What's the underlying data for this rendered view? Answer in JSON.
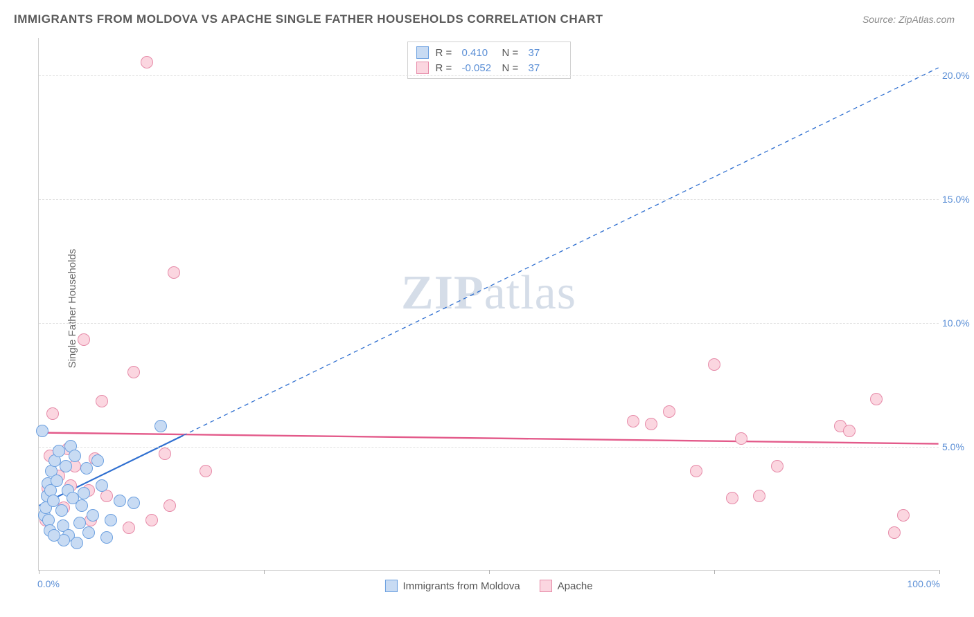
{
  "title": "IMMIGRANTS FROM MOLDOVA VS APACHE SINGLE FATHER HOUSEHOLDS CORRELATION CHART",
  "source": "Source: ZipAtlas.com",
  "ylabel": "Single Father Households",
  "watermark_a": "ZIP",
  "watermark_b": "atlas",
  "chart": {
    "type": "scatter",
    "xlim": [
      0,
      100
    ],
    "ylim": [
      0,
      21.5
    ],
    "xtick_positions": [
      0,
      25,
      50,
      75,
      100
    ],
    "x_axis_labels": {
      "min": "0.0%",
      "max": "100.0%"
    },
    "ytick_positions": [
      5,
      10,
      15,
      20
    ],
    "ytick_labels": [
      "5.0%",
      "10.0%",
      "15.0%",
      "20.0%"
    ],
    "background_color": "#ffffff",
    "grid_color": "#e0e0e0",
    "marker_radius": 9,
    "axis_label_color": "#5b8fd6",
    "series": [
      {
        "key": "moldova",
        "name": "Immigrants from Moldova",
        "fill_color": "#c8dbf3",
        "stroke_color": "#6ca0e0",
        "R": "0.410",
        "N": "37",
        "trend": {
          "x1": 0,
          "y1": 2.6,
          "x2": 100,
          "y2": 20.3,
          "solid_until_x": 16,
          "color": "#2f6fd0",
          "width": 2.2,
          "dash": "6,5"
        },
        "points": [
          [
            0.4,
            5.6
          ],
          [
            0.6,
            2.2
          ],
          [
            0.8,
            2.5
          ],
          [
            0.9,
            3.0
          ],
          [
            1.0,
            3.5
          ],
          [
            1.1,
            2.0
          ],
          [
            1.2,
            1.6
          ],
          [
            1.3,
            3.2
          ],
          [
            1.4,
            4.0
          ],
          [
            1.6,
            2.8
          ],
          [
            1.8,
            4.4
          ],
          [
            2.0,
            3.6
          ],
          [
            2.2,
            4.8
          ],
          [
            2.5,
            2.4
          ],
          [
            2.7,
            1.8
          ],
          [
            3.0,
            4.2
          ],
          [
            3.2,
            3.2
          ],
          [
            3.3,
            1.4
          ],
          [
            3.5,
            5.0
          ],
          [
            3.8,
            2.9
          ],
          [
            4.0,
            4.6
          ],
          [
            4.5,
            1.9
          ],
          [
            4.8,
            2.6
          ],
          [
            5.0,
            3.1
          ],
          [
            5.3,
            4.1
          ],
          [
            5.5,
            1.5
          ],
          [
            6.0,
            2.2
          ],
          [
            6.5,
            4.4
          ],
          [
            7.0,
            3.4
          ],
          [
            7.5,
            1.3
          ],
          [
            8.0,
            2.0
          ],
          [
            9.0,
            2.8
          ],
          [
            10.5,
            2.7
          ],
          [
            13.5,
            5.8
          ],
          [
            2.8,
            1.2
          ],
          [
            1.7,
            1.4
          ],
          [
            4.2,
            1.1
          ]
        ]
      },
      {
        "key": "apache",
        "name": "Apache",
        "fill_color": "#fbd6e0",
        "stroke_color": "#e68aa8",
        "R": "-0.052",
        "N": "37",
        "trend": {
          "x1": 0,
          "y1": 5.55,
          "x2": 100,
          "y2": 5.1,
          "color": "#e35a8a",
          "width": 2.4
        },
        "points": [
          [
            1.5,
            6.3
          ],
          [
            2.8,
            2.5
          ],
          [
            3.2,
            4.9
          ],
          [
            4.0,
            4.2
          ],
          [
            5.0,
            9.3
          ],
          [
            5.5,
            3.2
          ],
          [
            6.2,
            4.5
          ],
          [
            7.0,
            6.8
          ],
          [
            7.5,
            3.0
          ],
          [
            10.0,
            1.7
          ],
          [
            10.5,
            8.0
          ],
          [
            12.0,
            20.5
          ],
          [
            12.5,
            2.0
          ],
          [
            14.0,
            4.7
          ],
          [
            14.5,
            2.6
          ],
          [
            15.0,
            12.0
          ],
          [
            18.5,
            4.0
          ],
          [
            66.0,
            6.0
          ],
          [
            68.0,
            5.9
          ],
          [
            70.0,
            6.4
          ],
          [
            73.0,
            4.0
          ],
          [
            75.0,
            8.3
          ],
          [
            77.0,
            2.9
          ],
          [
            78.0,
            5.3
          ],
          [
            80.0,
            3.0
          ],
          [
            82.0,
            4.2
          ],
          [
            89.0,
            5.8
          ],
          [
            90.0,
            5.6
          ],
          [
            93.0,
            6.9
          ],
          [
            95.0,
            1.5
          ],
          [
            96.0,
            2.2
          ],
          [
            2.2,
            3.8
          ],
          [
            1.0,
            3.3
          ],
          [
            1.2,
            4.6
          ],
          [
            0.8,
            2.0
          ],
          [
            3.5,
            3.4
          ],
          [
            5.8,
            2.0
          ]
        ]
      }
    ]
  }
}
